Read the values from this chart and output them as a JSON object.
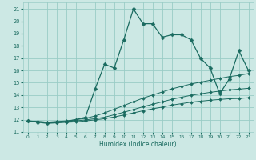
{
  "title": "",
  "xlabel": "Humidex (Indice chaleur)",
  "bg_color": "#cce8e4",
  "grid_color": "#99ccc6",
  "line_color": "#1a6b60",
  "xlim": [
    -0.5,
    23.5
  ],
  "ylim": [
    11,
    21.5
  ],
  "xticks": [
    0,
    1,
    2,
    3,
    4,
    5,
    6,
    7,
    8,
    9,
    10,
    11,
    12,
    13,
    14,
    15,
    16,
    17,
    18,
    19,
    20,
    21,
    22,
    23
  ],
  "yticks": [
    11,
    12,
    13,
    14,
    15,
    16,
    17,
    18,
    19,
    20,
    21
  ],
  "series": [
    {
      "x": [
        0,
        1,
        2,
        3,
        4,
        5,
        6,
        7,
        8,
        9,
        10,
        11,
        12,
        13,
        14,
        15,
        16,
        17,
        18,
        19,
        20,
        21,
        22,
        23
      ],
      "y": [
        11.9,
        11.8,
        11.7,
        11.75,
        11.85,
        12.0,
        12.2,
        14.5,
        16.5,
        16.2,
        18.5,
        21.0,
        19.8,
        19.8,
        18.7,
        18.9,
        18.9,
        18.5,
        17.0,
        16.2,
        14.1,
        15.3,
        17.6,
        16.0
      ]
    },
    {
      "x": [
        0,
        1,
        2,
        3,
        4,
        5,
        6,
        7,
        8,
        9,
        10,
        11,
        12,
        13,
        14,
        15,
        16,
        17,
        18,
        19,
        20,
        21,
        22,
        23
      ],
      "y": [
        11.9,
        11.85,
        11.8,
        11.85,
        11.9,
        12.0,
        12.1,
        12.3,
        12.55,
        12.85,
        13.15,
        13.45,
        13.75,
        14.0,
        14.25,
        14.5,
        14.7,
        14.9,
        15.05,
        15.2,
        15.35,
        15.5,
        15.6,
        15.75
      ]
    },
    {
      "x": [
        0,
        1,
        2,
        3,
        4,
        5,
        6,
        7,
        8,
        9,
        10,
        11,
        12,
        13,
        14,
        15,
        16,
        17,
        18,
        19,
        20,
        21,
        22,
        23
      ],
      "y": [
        11.9,
        11.85,
        11.8,
        11.82,
        11.85,
        11.9,
        11.98,
        12.08,
        12.2,
        12.4,
        12.6,
        12.82,
        13.05,
        13.25,
        13.45,
        13.65,
        13.82,
        13.98,
        14.1,
        14.22,
        14.32,
        14.42,
        14.48,
        14.55
      ]
    },
    {
      "x": [
        0,
        1,
        2,
        3,
        4,
        5,
        6,
        7,
        8,
        9,
        10,
        11,
        12,
        13,
        14,
        15,
        16,
        17,
        18,
        19,
        20,
        21,
        22,
        23
      ],
      "y": [
        11.9,
        11.82,
        11.75,
        11.75,
        11.78,
        11.82,
        11.9,
        11.98,
        12.08,
        12.22,
        12.38,
        12.55,
        12.72,
        12.88,
        13.02,
        13.18,
        13.3,
        13.42,
        13.5,
        13.58,
        13.64,
        13.7,
        13.72,
        13.78
      ]
    }
  ]
}
